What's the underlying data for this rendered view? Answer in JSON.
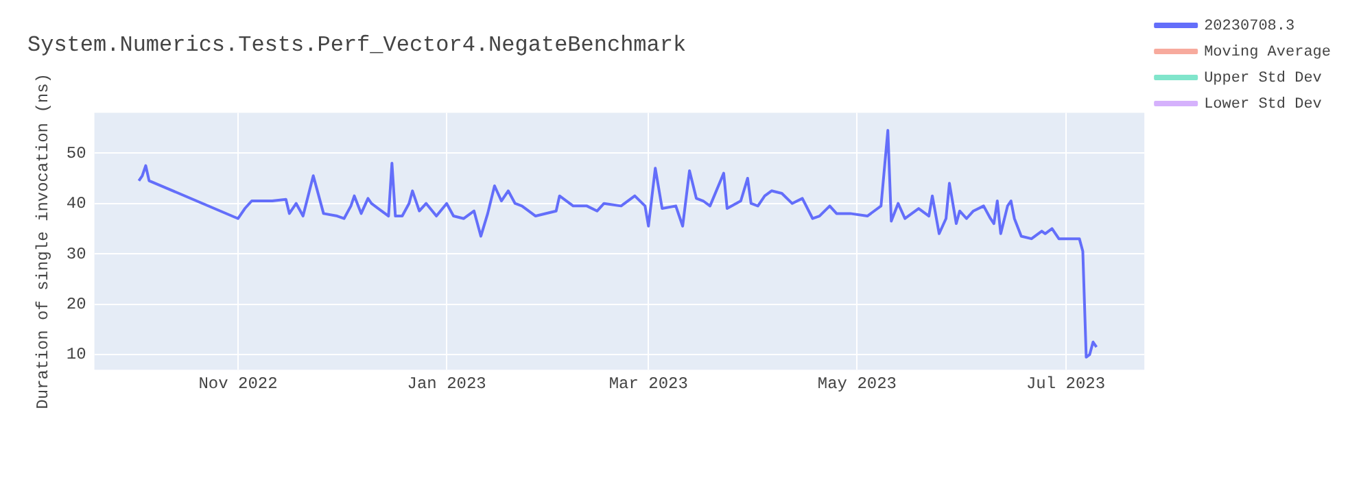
{
  "chart_data": {
    "type": "line",
    "title": "System.Numerics.Tests.Perf_Vector4.NegateBenchmark",
    "ylabel": "Duration of single invocation (ns)",
    "x": [
      "2022-10-03",
      "2022-10-04",
      "2022-10-05",
      "2022-10-06",
      "2022-11-01",
      "2022-11-03",
      "2022-11-05",
      "2022-11-07",
      "2022-11-11",
      "2022-11-15",
      "2022-11-16",
      "2022-11-18",
      "2022-11-20",
      "2022-11-23",
      "2022-11-24",
      "2022-11-26",
      "2022-11-30",
      "2022-12-02",
      "2022-12-04",
      "2022-12-05",
      "2022-12-07",
      "2022-12-09",
      "2022-12-10",
      "2022-12-12",
      "2022-12-15",
      "2022-12-16",
      "2022-12-17",
      "2022-12-19",
      "2022-12-21",
      "2022-12-22",
      "2022-12-24",
      "2022-12-26",
      "2022-12-29",
      "2023-01-01",
      "2023-01-03",
      "2023-01-06",
      "2023-01-09",
      "2023-01-11",
      "2023-01-13",
      "2023-01-15",
      "2023-01-17",
      "2023-01-19",
      "2023-01-21",
      "2023-01-23",
      "2023-01-27",
      "2023-02-02",
      "2023-02-03",
      "2023-02-07",
      "2023-02-11",
      "2023-02-14",
      "2023-02-16",
      "2023-02-21",
      "2023-02-25",
      "2023-02-28",
      "2023-03-01",
      "2023-03-03",
      "2023-03-05",
      "2023-03-09",
      "2023-03-11",
      "2023-03-13",
      "2023-03-15",
      "2023-03-17",
      "2023-03-19",
      "2023-03-23",
      "2023-03-24",
      "2023-03-28",
      "2023-03-30",
      "2023-03-31",
      "2023-04-02",
      "2023-04-04",
      "2023-04-06",
      "2023-04-09",
      "2023-04-12",
      "2023-04-15",
      "2023-04-18",
      "2023-04-20",
      "2023-04-23",
      "2023-04-25",
      "2023-04-29",
      "2023-05-04",
      "2023-05-08",
      "2023-05-10",
      "2023-05-11",
      "2023-05-13",
      "2023-05-15",
      "2023-05-17",
      "2023-05-19",
      "2023-05-22",
      "2023-05-23",
      "2023-05-25",
      "2023-05-27",
      "2023-05-28",
      "2023-05-30",
      "2023-05-31",
      "2023-06-02",
      "2023-06-04",
      "2023-06-07",
      "2023-06-09",
      "2023-06-10",
      "2023-06-11",
      "2023-06-12",
      "2023-06-14",
      "2023-06-15",
      "2023-06-16",
      "2023-06-18",
      "2023-06-21",
      "2023-06-24",
      "2023-06-25",
      "2023-06-27",
      "2023-06-29",
      "2023-07-02",
      "2023-07-05",
      "2023-07-06",
      "2023-07-07",
      "2023-07-08",
      "2023-07-09",
      "2023-07-10"
    ],
    "series": [
      {
        "name": "20230708.3",
        "color": "#636efa",
        "values": [
          44.5,
          45.5,
          47.5,
          44.5,
          37,
          39,
          40.5,
          40.5,
          40.5,
          40.8,
          38,
          40,
          37.5,
          45.5,
          43,
          38,
          37.5,
          37,
          39.5,
          41.5,
          38,
          41,
          40,
          39,
          37.5,
          48,
          37.5,
          37.5,
          40,
          42.5,
          38.5,
          40,
          37.5,
          40,
          37.5,
          37,
          38.5,
          33.5,
          38,
          43.5,
          40.5,
          42.5,
          40,
          39.5,
          37.5,
          38.5,
          41.5,
          39.5,
          39.5,
          38.5,
          40,
          39.5,
          41.5,
          39.5,
          35.5,
          47,
          39,
          39.5,
          35.5,
          46.5,
          41,
          40.5,
          39.5,
          46,
          39,
          40.5,
          45,
          40,
          39.5,
          41.5,
          42.5,
          42,
          40,
          41,
          37,
          37.5,
          39.5,
          38,
          38,
          37.5,
          39.5,
          54.5,
          36.5,
          40,
          37,
          38,
          39,
          37.5,
          41.5,
          34,
          37,
          44,
          36,
          38.5,
          37,
          38.5,
          39.5,
          37,
          36,
          40.5,
          34,
          39.5,
          40.5,
          37,
          33.5,
          33,
          34.5,
          34,
          35,
          33,
          33,
          33,
          30.5,
          9.5,
          10,
          12.5,
          11.5
        ]
      },
      {
        "name": "Moving Average",
        "color": "#f7aa9d",
        "values": [
          null,
          null,
          null,
          null,
          null,
          null,
          null,
          null,
          null,
          null,
          null,
          null,
          null,
          null,
          null,
          null,
          null,
          null,
          null,
          null,
          null,
          null,
          null,
          null,
          null,
          null,
          null,
          null,
          null,
          null,
          null,
          null,
          null,
          null,
          null,
          null,
          null,
          null,
          null,
          null,
          null,
          null,
          null,
          null,
          null,
          null,
          null,
          null,
          null,
          null,
          null,
          null,
          null,
          null,
          null,
          null,
          null,
          null,
          null,
          null,
          null,
          null,
          null,
          null,
          null,
          null,
          null,
          null,
          null,
          null,
          null,
          null,
          null,
          null,
          null,
          null,
          null,
          null,
          null,
          null,
          null,
          null,
          null,
          null,
          null,
          null,
          null,
          null,
          null,
          null,
          null,
          null,
          null,
          null,
          null,
          null,
          null,
          null,
          null,
          null,
          null,
          null,
          null,
          null,
          null,
          null,
          null,
          null,
          null,
          null,
          null,
          null,
          null,
          null,
          null,
          null,
          null
        ]
      },
      {
        "name": "Upper Std Dev",
        "color": "#80e5cb",
        "values": [
          null,
          null,
          null,
          null,
          null,
          null,
          null,
          null,
          null,
          null,
          null,
          null,
          null,
          null,
          null,
          null,
          null,
          null,
          null,
          null,
          null,
          null,
          null,
          null,
          null,
          null,
          null,
          null,
          null,
          null,
          null,
          null,
          null,
          null,
          null,
          null,
          null,
          null,
          null,
          null,
          null,
          null,
          null,
          null,
          null,
          null,
          null,
          null,
          null,
          null,
          null,
          null,
          null,
          null,
          null,
          null,
          null,
          null,
          null,
          null,
          null,
          null,
          null,
          null,
          null,
          null,
          null,
          null,
          null,
          null,
          null,
          null,
          null,
          null,
          null,
          null,
          null,
          null,
          null,
          null,
          null,
          null,
          null,
          null,
          null,
          null,
          null,
          null,
          null,
          null,
          null,
          null,
          null,
          null,
          null,
          null,
          null,
          null,
          null,
          null,
          null,
          null,
          null,
          null,
          null,
          null,
          null,
          null,
          null,
          null,
          null,
          null,
          null,
          null,
          null,
          null,
          null
        ]
      },
      {
        "name": "Lower Std Dev",
        "color": "#d5b1fc",
        "values": [
          null,
          null,
          null,
          null,
          null,
          null,
          null,
          null,
          null,
          null,
          null,
          null,
          null,
          null,
          null,
          null,
          null,
          null,
          null,
          null,
          null,
          null,
          null,
          null,
          null,
          null,
          null,
          null,
          null,
          null,
          null,
          null,
          null,
          null,
          null,
          null,
          null,
          null,
          null,
          null,
          null,
          null,
          null,
          null,
          null,
          null,
          null,
          null,
          null,
          null,
          null,
          null,
          null,
          null,
          null,
          null,
          null,
          null,
          null,
          null,
          null,
          null,
          null,
          null,
          null,
          null,
          null,
          null,
          null,
          null,
          null,
          null,
          null,
          null,
          null,
          null,
          null,
          null,
          null,
          null,
          null,
          null,
          null,
          null,
          null,
          null,
          null,
          null,
          null,
          null,
          null,
          null,
          null,
          null,
          null,
          null,
          null,
          null,
          null,
          null,
          null,
          null,
          null,
          null,
          null,
          null,
          null,
          null,
          null,
          null,
          null,
          null,
          null,
          null,
          null,
          null,
          null
        ]
      }
    ],
    "xlim": [
      "2022-09-20",
      "2023-07-24"
    ],
    "xticks": [
      {
        "value": "2022-11-01",
        "label": "Nov 2022"
      },
      {
        "value": "2023-01-01",
        "label": "Jan 2023"
      },
      {
        "value": "2023-03-01",
        "label": "Mar 2023"
      },
      {
        "value": "2023-05-01",
        "label": "May 2023"
      },
      {
        "value": "2023-07-01",
        "label": "Jul 2023"
      }
    ],
    "ylim": [
      7,
      58
    ],
    "yticks": [
      10,
      20,
      30,
      40,
      50
    ],
    "grid": true,
    "legend": "right",
    "marker": "none",
    "line_style": "solid"
  }
}
